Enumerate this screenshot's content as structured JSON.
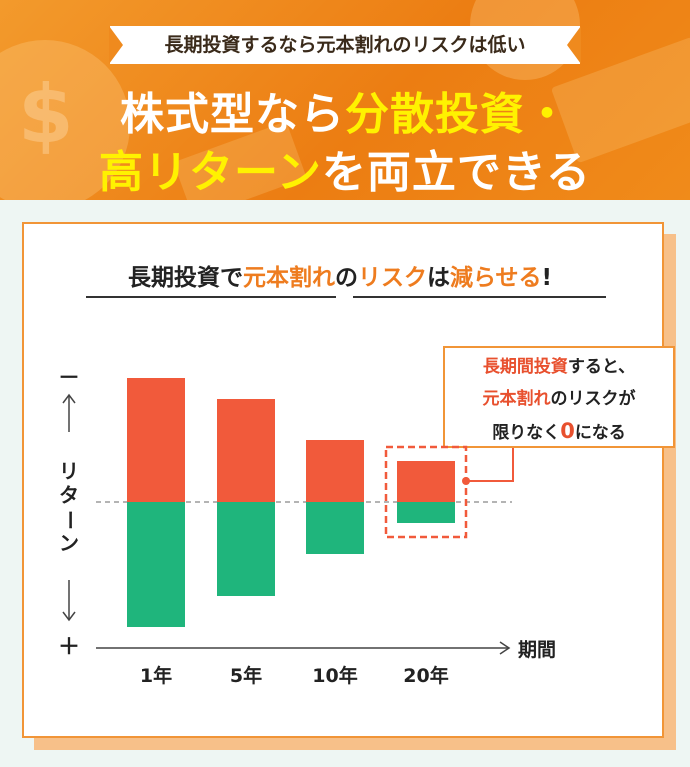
{
  "header": {
    "ribbon_text": "長期投資するなら元本割れのリスクは低い",
    "headline_line1_plain": "株式型なら",
    "headline_line1_highlight": "分散投資・",
    "headline_line2_highlight": "高リターン",
    "headline_line2_plain": "を両立できる"
  },
  "card": {
    "subtitle_part1": "長期投資で",
    "subtitle_part2": "元本割れ",
    "subtitle_part3": "の",
    "subtitle_part4": "リスク",
    "subtitle_part5": "は",
    "subtitle_part6": "減らせる",
    "subtitle_part7": "!",
    "callout_line1_red": "長期間投資",
    "callout_line1_plain": "すると、",
    "callout_line2_red": "元本割れ",
    "callout_line2_plain": "のリスクが",
    "callout_line3_a": "限りなく",
    "callout_line3_zero": "0",
    "callout_line3_b": "になる"
  },
  "colors": {
    "header_orange": "#ef8a1e",
    "highlight_yellow": "#fff200",
    "loss_red": "#f15a3b",
    "gain_green": "#1fb57c",
    "accent_orange": "#ee7c1f"
  },
  "chart_data": {
    "type": "bar",
    "y_axis_label": "リターン",
    "y_top_sign": "－",
    "y_bottom_sign": "＋",
    "x_axis_label": "期間",
    "categories": [
      "1年",
      "5年",
      "10年",
      "20年"
    ],
    "series": [
      {
        "key": "negative",
        "color": "#f15a3b",
        "values": [
          -124,
          -103,
          -62,
          -41
        ]
      },
      {
        "key": "positive",
        "color": "#1fb57c",
        "values": [
          125,
          94,
          52,
          21
        ]
      }
    ],
    "highlighted_category": "20年"
  }
}
